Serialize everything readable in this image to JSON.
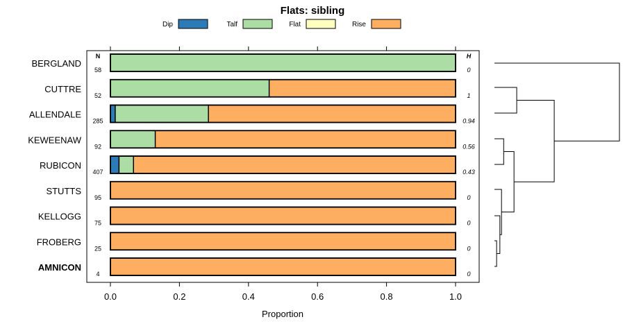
{
  "chart_data": {
    "type": "bar",
    "orientation": "horizontal",
    "stacked": true,
    "title": "Flats: sibling",
    "xlabel": "Proportion",
    "ylabel": "",
    "xlim": [
      -0.07,
      1.07
    ],
    "xticks": [
      0.0,
      0.2,
      0.4,
      0.6,
      0.8,
      1.0
    ],
    "xtick_labels": [
      "0.0",
      "0.2",
      "0.4",
      "0.6",
      "0.8",
      "1.0"
    ],
    "legend": {
      "placement": "top",
      "entries": [
        {
          "name": "Dip",
          "color": "#2c7bb6"
        },
        {
          "name": "Talf",
          "color": "#abdda4"
        },
        {
          "name": "Flat",
          "color": "#ffffbf"
        },
        {
          "name": "Rise",
          "color": "#fdae61"
        }
      ]
    },
    "n_header": "N",
    "h_header": "H",
    "categories": [
      "BERGLAND",
      "CUTTRE",
      "ALLENDALE",
      "KEWEENAW",
      "RUBICON",
      "STUTTS",
      "KELLOGG",
      "FROBERG",
      "AMNICON"
    ],
    "bold_categories": [
      "AMNICON"
    ],
    "n_values": [
      "58",
      "52",
      "285",
      "92",
      "407",
      "95",
      "75",
      "25",
      "4"
    ],
    "h_values": [
      "0",
      "1",
      "0.94",
      "0.56",
      "0.43",
      "0",
      "0",
      "0",
      "0"
    ],
    "series": [
      {
        "name": "Dip",
        "color": "#2c7bb6",
        "values": [
          0,
          0,
          0.014,
          0,
          0.025,
          0,
          0,
          0,
          0
        ]
      },
      {
        "name": "Talf",
        "color": "#abdda4",
        "values": [
          1.0,
          0.46,
          0.27,
          0.13,
          0.042,
          0,
          0,
          0,
          0
        ]
      },
      {
        "name": "Flat",
        "color": "#ffffbf",
        "values": [
          0,
          0,
          0,
          0,
          0,
          0,
          0,
          0,
          0
        ]
      },
      {
        "name": "Rise",
        "color": "#fdae61",
        "values": [
          0,
          0.54,
          0.716,
          0.87,
          0.933,
          1.0,
          1.0,
          1.0,
          1.0
        ]
      }
    ],
    "dendrogram": {
      "leaves": [
        "BERGLAND",
        "CUTTRE",
        "ALLENDALE",
        "KEWEENAW",
        "RUBICON",
        "STUTTS",
        "KELLOGG",
        "FROBERG",
        "AMNICON"
      ],
      "merges": [
        {
          "left": [
            "leaf",
            7
          ],
          "right": [
            "leaf",
            8
          ],
          "height": 0.04
        },
        {
          "left": [
            "leaf",
            6
          ],
          "right": [
            "node",
            0
          ],
          "height": 0.1
        },
        {
          "left": [
            "leaf",
            5
          ],
          "right": [
            "node",
            1
          ],
          "height": 0.13
        },
        {
          "left": [
            "leaf",
            3
          ],
          "right": [
            "leaf",
            4
          ],
          "height": 0.17
        },
        {
          "left": [
            "node",
            3
          ],
          "right": [
            "node",
            2
          ],
          "height": 0.36
        },
        {
          "left": [
            "leaf",
            1
          ],
          "right": [
            "leaf",
            2
          ],
          "height": 0.41
        },
        {
          "left": [
            "node",
            5
          ],
          "right": [
            "node",
            4
          ],
          "height": 1.1
        },
        {
          "left": [
            "leaf",
            0
          ],
          "right": [
            "node",
            6
          ],
          "height": 2.3
        }
      ],
      "max_height": 2.3
    }
  }
}
